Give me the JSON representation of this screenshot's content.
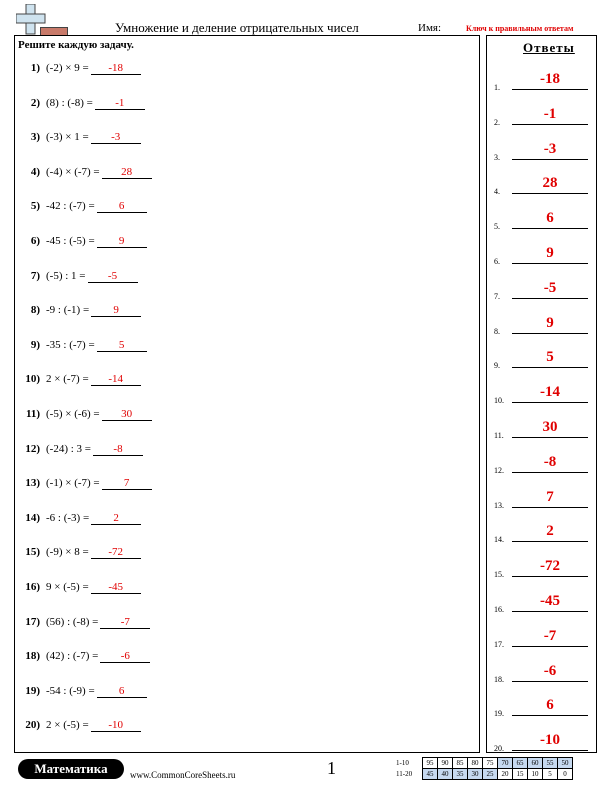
{
  "header": {
    "title": "Умножение и деление отрицательных чисел",
    "name_label": "Имя:",
    "key_label": "Ключ к правильным ответам"
  },
  "instructions": "Решите каждую задачу.",
  "problems": [
    {
      "num": "1)",
      "expr": "(-2) × 9 =",
      "answer": "-18"
    },
    {
      "num": "2)",
      "expr": "(8) : (-8) =",
      "answer": "-1"
    },
    {
      "num": "3)",
      "expr": "(-3) × 1 =",
      "answer": "-3"
    },
    {
      "num": "4)",
      "expr": "(-4) × (-7) =",
      "answer": "28"
    },
    {
      "num": "5)",
      "expr": "-42 : (-7) =",
      "answer": "6"
    },
    {
      "num": "6)",
      "expr": "-45 : (-5) =",
      "answer": "9"
    },
    {
      "num": "7)",
      "expr": "(-5) : 1 =",
      "answer": "-5"
    },
    {
      "num": "8)",
      "expr": "-9 : (-1) =",
      "answer": "9"
    },
    {
      "num": "9)",
      "expr": "-35 : (-7) =",
      "answer": "5"
    },
    {
      "num": "10)",
      "expr": "2 × (-7) =",
      "answer": "-14"
    },
    {
      "num": "11)",
      "expr": "(-5) × (-6) =",
      "answer": "30"
    },
    {
      "num": "12)",
      "expr": "(-24) : 3 =",
      "answer": "-8"
    },
    {
      "num": "13)",
      "expr": "(-1) × (-7) =",
      "answer": "7"
    },
    {
      "num": "14)",
      "expr": "-6 : (-3) =",
      "answer": "2"
    },
    {
      "num": "15)",
      "expr": "(-9) × 8 =",
      "answer": "-72"
    },
    {
      "num": "16)",
      "expr": "9 × (-5) =",
      "answer": "-45"
    },
    {
      "num": "17)",
      "expr": "(56) : (-8) =",
      "answer": "-7"
    },
    {
      "num": "18)",
      "expr": "(42) : (-7) =",
      "answer": "-6"
    },
    {
      "num": "19)",
      "expr": "-54 : (-9) =",
      "answer": "6"
    },
    {
      "num": "20)",
      "expr": "2 × (-5) =",
      "answer": "-10"
    }
  ],
  "answer_key": {
    "title": "Ответы",
    "items": [
      {
        "num": "1.",
        "value": "-18"
      },
      {
        "num": "2.",
        "value": "-1"
      },
      {
        "num": "3.",
        "value": "-3"
      },
      {
        "num": "4.",
        "value": "28"
      },
      {
        "num": "5.",
        "value": "6"
      },
      {
        "num": "6.",
        "value": "9"
      },
      {
        "num": "7.",
        "value": "-5"
      },
      {
        "num": "8.",
        "value": "9"
      },
      {
        "num": "9.",
        "value": "5"
      },
      {
        "num": "10.",
        "value": "-14"
      },
      {
        "num": "11.",
        "value": "30"
      },
      {
        "num": "12.",
        "value": "-8"
      },
      {
        "num": "13.",
        "value": "7"
      },
      {
        "num": "14.",
        "value": "2"
      },
      {
        "num": "15.",
        "value": "-72"
      },
      {
        "num": "16.",
        "value": "-45"
      },
      {
        "num": "17.",
        "value": "-7"
      },
      {
        "num": "18.",
        "value": "-6"
      },
      {
        "num": "19.",
        "value": "6"
      },
      {
        "num": "20.",
        "value": "-10"
      }
    ]
  },
  "footer": {
    "brand": "Математика",
    "url": "www.CommonCoreSheets.ru",
    "page": "1",
    "score_rows": [
      {
        "label": "1-10",
        "cells": [
          "95",
          "90",
          "85",
          "80",
          "75",
          "70",
          "65",
          "60",
          "55",
          "50"
        ]
      },
      {
        "label": "11-20",
        "cells": [
          "45",
          "40",
          "35",
          "30",
          "25",
          "20",
          "15",
          "10",
          "5",
          "0"
        ]
      }
    ]
  },
  "colors": {
    "answer_red": "#e00000",
    "score_highlight": "#c6d9f0"
  },
  "icons": [
    "plus-icon",
    "minus-icon"
  ]
}
